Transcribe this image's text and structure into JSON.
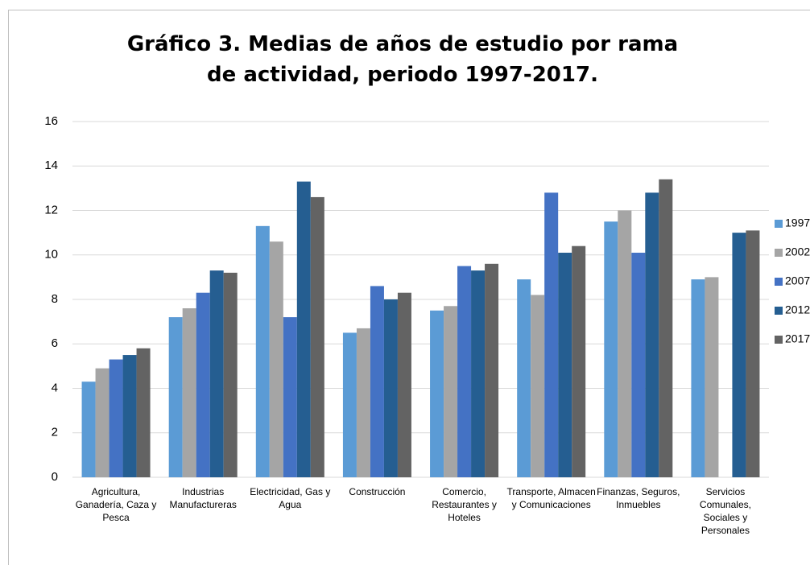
{
  "chart_data": {
    "type": "bar",
    "title": "Gráfico 3. Medias de años de estudio por rama de actividad, periodo 1997-2017.",
    "categories": [
      "Agricultura, Ganadería, Caza y Pesca",
      "Industrias Manufactureras",
      "Electricidad, Gas y Agua",
      "Construcción",
      "Comercio, Restaurantes y Hoteles",
      "Transporte, Almacen y Comunicaciones",
      "Finanzas, Seguros, Inmuebles",
      "Servicios Comunales, Sociales y Personales"
    ],
    "series": [
      {
        "name": "1997",
        "color": "#5b9bd5",
        "values": [
          4.3,
          7.2,
          11.3,
          6.5,
          7.5,
          8.9,
          11.5,
          8.9
        ]
      },
      {
        "name": "2002",
        "color": "#a5a5a5",
        "values": [
          4.9,
          7.6,
          10.6,
          6.7,
          7.7,
          8.2,
          12.0,
          9.0
        ]
      },
      {
        "name": "2007",
        "color": "#4472c4",
        "values": [
          5.3,
          8.3,
          7.2,
          8.6,
          9.5,
          12.8,
          10.1,
          null
        ]
      },
      {
        "name": "2012",
        "color": "#255e91",
        "values": [
          5.5,
          9.3,
          13.3,
          8.0,
          9.3,
          10.1,
          12.8,
          11.0
        ]
      },
      {
        "name": "2017",
        "color": "#636363",
        "values": [
          5.8,
          9.2,
          12.6,
          8.3,
          9.6,
          10.4,
          13.4,
          11.1
        ]
      }
    ],
    "ylim": [
      0,
      16
    ],
    "yticks": [
      0,
      2,
      4,
      6,
      8,
      10,
      12,
      14,
      16
    ],
    "grid": true,
    "legend": "right"
  }
}
